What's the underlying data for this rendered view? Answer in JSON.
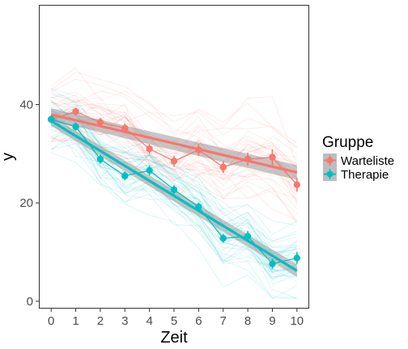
{
  "chart_data": {
    "type": "line",
    "xlabel": "Zeit",
    "ylabel": "y",
    "x": [
      0,
      1,
      2,
      3,
      4,
      5,
      6,
      7,
      8,
      9,
      10
    ],
    "xlim": [
      -0.5,
      10.5
    ],
    "ylim": [
      -1.5,
      60.3
    ],
    "x_ticks": [
      "0",
      "1",
      "2",
      "3",
      "4",
      "5",
      "6",
      "7",
      "8",
      "9",
      "10"
    ],
    "y_ticks": [
      "0",
      "20",
      "40"
    ],
    "y_tick_values": [
      0,
      20,
      40
    ],
    "grid": false,
    "legend": {
      "title": "Gruppe",
      "position": "right",
      "entries": [
        "Warteliste",
        "Therapie"
      ]
    },
    "series": [
      {
        "name": "Warteliste",
        "color": "#F8766D",
        "means": [
          37.0,
          38.6,
          36.4,
          35.2,
          31.0,
          28.5,
          30.8,
          27.3,
          28.9,
          29.3,
          23.7
        ],
        "se": [
          0.8,
          0.8,
          0.9,
          1.0,
          1.0,
          1.1,
          1.2,
          1.2,
          1.3,
          1.6,
          1.4
        ],
        "fit": [
          38.0,
          26.2
        ],
        "fit_band": [
          1.2,
          1.5
        ]
      },
      {
        "name": "Therapie",
        "color": "#00BFC4",
        "means": [
          37.0,
          35.5,
          28.9,
          25.5,
          26.6,
          22.7,
          19.2,
          12.8,
          13.2,
          7.6,
          8.8
        ],
        "se": [
          0.8,
          0.8,
          0.9,
          0.9,
          1.0,
          0.9,
          0.9,
          0.9,
          1.1,
          1.1,
          1.2
        ],
        "fit": [
          36.7,
          6.2
        ],
        "fit_band": [
          1.0,
          1.3
        ]
      }
    ]
  }
}
